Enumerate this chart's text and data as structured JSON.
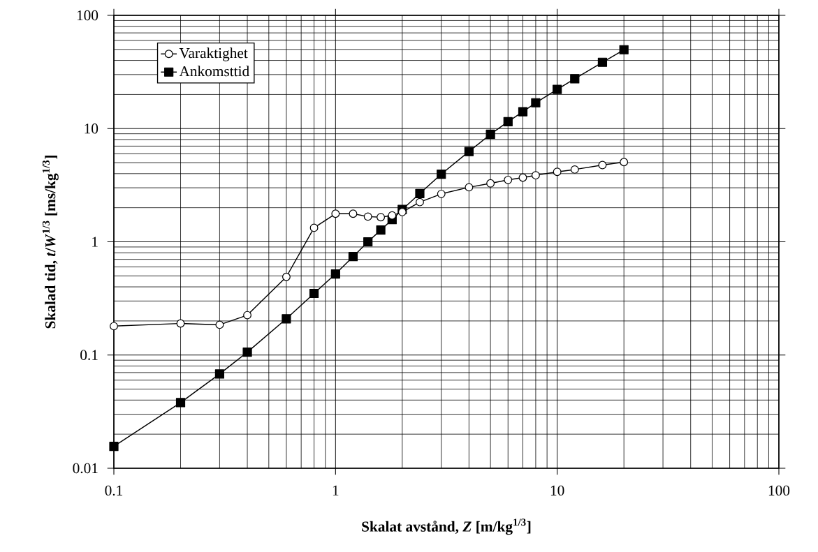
{
  "chart_data": {
    "type": "line",
    "xlabel": "Skalat avstånd, *Z*  [m/kg$^{1/3}$]",
    "ylabel": "Skalad tid, *t*/*W*$^{1/3}$  [ms/kg$^{1/3}$]",
    "log": "xy",
    "grid": true,
    "legend": "top left",
    "line_style": "solid",
    "xlim": [
      0.1,
      100
    ],
    "ylim": [
      0.01,
      100
    ],
    "xticks": [
      0.1,
      1,
      10,
      100
    ],
    "yticks": [
      0.01,
      0.1,
      1,
      10,
      100
    ],
    "x": [
      0.1,
      0.2,
      0.3,
      0.4,
      0.6,
      0.8,
      1,
      1.2,
      1.4,
      1.6,
      1.8,
      2,
      2.4,
      3,
      4,
      5,
      6,
      7,
      8,
      10,
      12,
      16,
      20
    ],
    "series": [
      {
        "name": "Varaktighet",
        "color": "#000000",
        "marker": "circle",
        "values": [
          0.18,
          0.19,
          0.185,
          0.225,
          0.49,
          1.33,
          1.77,
          1.77,
          1.67,
          1.65,
          1.71,
          1.83,
          2.24,
          2.65,
          3.03,
          3.28,
          3.52,
          3.69,
          3.87,
          4.15,
          4.35,
          4.76,
          5.06
        ]
      },
      {
        "name": "Ankomsttid",
        "color": "#000000",
        "marker": "square",
        "values": [
          0.0156,
          0.038,
          0.068,
          0.106,
          0.209,
          0.35,
          0.52,
          0.74,
          1.0,
          1.27,
          1.57,
          1.93,
          2.67,
          3.96,
          6.27,
          8.9,
          11.5,
          14.1,
          16.9,
          22.2,
          27.5,
          38.5,
          49.7
        ]
      }
    ]
  }
}
